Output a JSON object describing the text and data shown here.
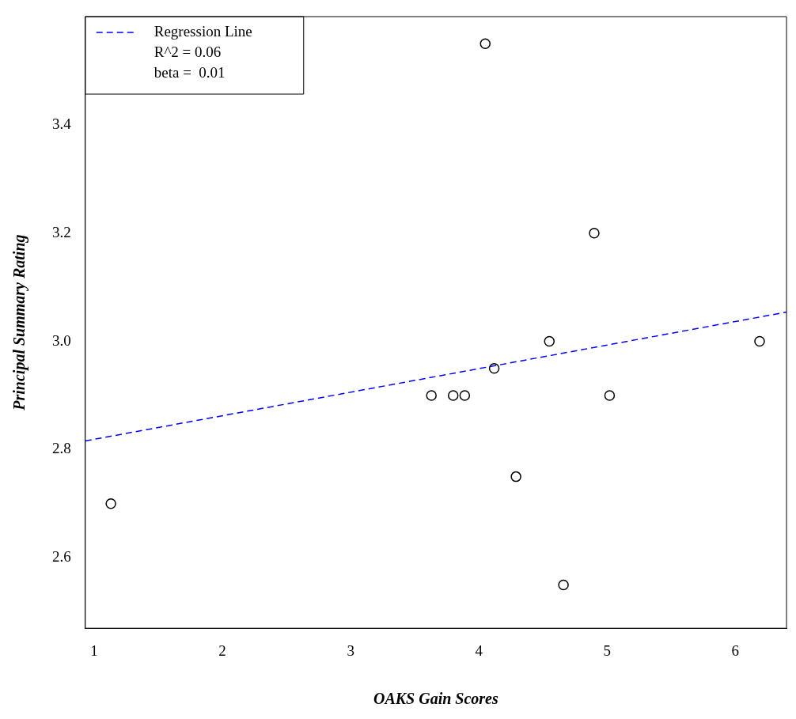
{
  "chart_data": {
    "type": "scatter",
    "xlabel": "OAKS Gain Scores",
    "ylabel": "Principal Summary Rating",
    "xlim": [
      0.93,
      6.4
    ],
    "ylim": [
      2.47,
      3.6
    ],
    "xticks": [
      1,
      2,
      3,
      4,
      5,
      6
    ],
    "yticks": [
      2.6,
      2.8,
      {
        "value": 3.0,
        "label": "3.0"
      },
      3.2,
      3.4
    ],
    "grid": false,
    "legend": "top left",
    "annotations": [
      "R^2 = 0.06",
      "beta =  0.01"
    ],
    "series": [
      {
        "type": "scatter",
        "color": "#000000",
        "marker": "circle",
        "x": [
          1.13,
          3.63,
          3.8,
          3.89,
          4.05,
          4.12,
          4.29,
          4.55,
          4.66,
          4.9,
          5.02,
          6.19
        ],
        "values": [
          2.7,
          2.9,
          2.9,
          2.9,
          3.55,
          2.95,
          2.75,
          3.0,
          2.55,
          3.2,
          2.9,
          3.0
        ]
      },
      {
        "type": "line",
        "name": "Regression Line",
        "color": "#0000ff",
        "line_style": "dashed",
        "marker": "none",
        "x": [
          0.93,
          6.4
        ],
        "values": [
          2.816,
          3.054
        ]
      }
    ]
  }
}
